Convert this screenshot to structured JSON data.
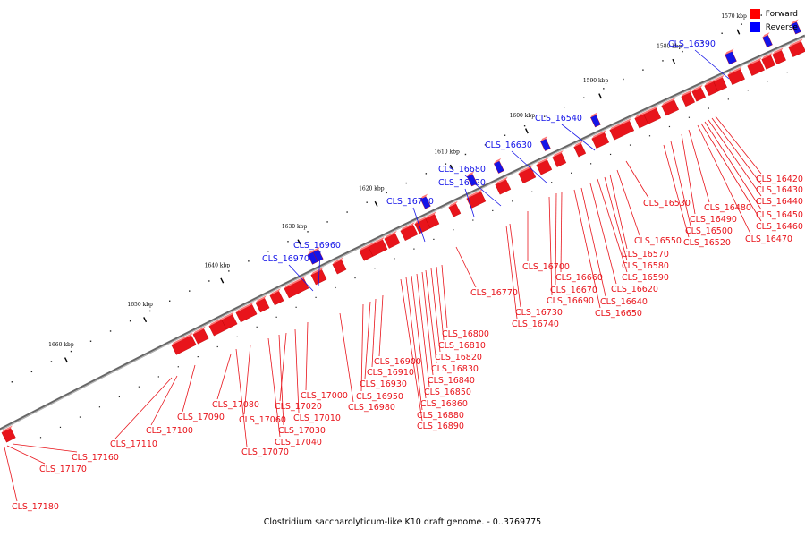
{
  "legend": {
    "forward": {
      "label": "Forward",
      "color": "#ff0000"
    },
    "reverse": {
      "label": "Reverse",
      "color": "#0000ff"
    }
  },
  "footer": "Clostridium saccharolyticum-like K10 draft genome. - 0..3769775",
  "colors": {
    "forward": "#e8141b",
    "reverse": "#1414e8",
    "backbone": "#777777"
  },
  "ticks": [
    "1570 kbp",
    "1580 kbp",
    "1590 kbp",
    "1600 kbp",
    "1610 kbp",
    "1620 kbp",
    "1630 kbp",
    "1640 kbp",
    "1650 kbp",
    "1660 kbp"
  ],
  "reverse_genes": [
    "CLS_16390",
    "CLS_16540",
    "CLS_16630",
    "CLS_16680",
    "CLS_16720",
    "CLS_16790",
    "CLS_16960",
    "CLS_16970"
  ],
  "forward_genes": [
    "CLS_16420",
    "CLS_16430",
    "CLS_16440",
    "CLS_16450",
    "CLS_16460",
    "CLS_16470",
    "CLS_16480",
    "CLS_16490",
    "CLS_16500",
    "CLS_16520",
    "CLS_16530",
    "CLS_16550",
    "CLS_16570",
    "CLS_16580",
    "CLS_16590",
    "CLS_16620",
    "CLS_16640",
    "CLS_16650",
    "CLS_16660",
    "CLS_16670",
    "CLS_16690",
    "CLS_16700",
    "CLS_16730",
    "CLS_16740",
    "CLS_16770",
    "CLS_16800",
    "CLS_16810",
    "CLS_16820",
    "CLS_16830",
    "CLS_16840",
    "CLS_16850",
    "CLS_16860",
    "CLS_16880",
    "CLS_16890",
    "CLS_16900",
    "CLS_16910",
    "CLS_16930",
    "CLS_16950",
    "CLS_16980",
    "CLS_17000",
    "CLS_17010",
    "CLS_17020",
    "CLS_17030",
    "CLS_17040",
    "CLS_17060",
    "CLS_17070",
    "CLS_17080",
    "CLS_17090",
    "CLS_17100",
    "CLS_17110",
    "CLS_17160",
    "CLS_17170",
    "CLS_17180"
  ]
}
